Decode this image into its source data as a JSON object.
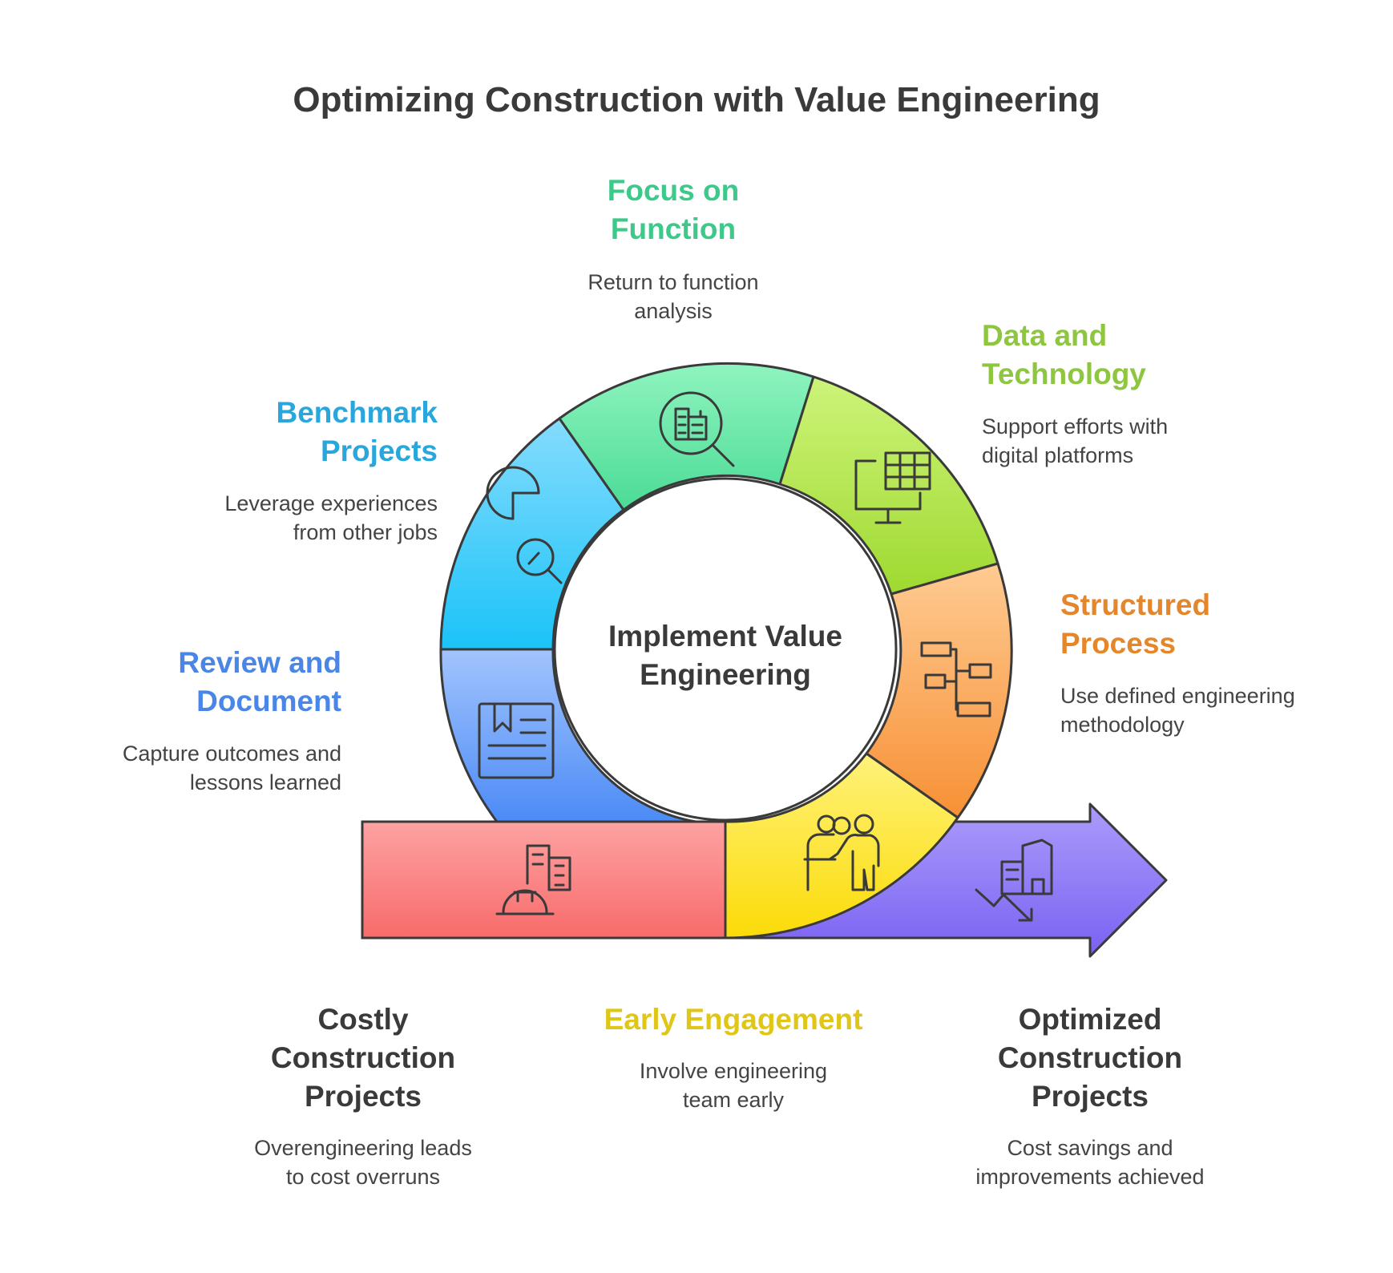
{
  "title": "Optimizing Construction with Value Engineering",
  "center": {
    "label": "Implement Value\nEngineering"
  },
  "colors": {
    "stroke": "#3a3a3a",
    "benchmark": "#29a7dd",
    "focus": "#3cc98a",
    "data": "#8ec63f",
    "structured": "#e5862a",
    "review": "#4a86e8",
    "early": "#e0c717",
    "neutral": "#3a3a3a"
  },
  "steps": {
    "focus": {
      "title": "Focus on\nFunction",
      "desc": "Return to function\nanalysis",
      "icon": "building-search-icon"
    },
    "data": {
      "title": "Data and\nTechnology",
      "desc": "Support efforts with\ndigital platforms",
      "icon": "monitor-spreadsheet-icon"
    },
    "benchmark": {
      "title": "Benchmark\nProjects",
      "desc": "Leverage experiences\nfrom other jobs",
      "icon": "pie-chart-search-icon"
    },
    "structured": {
      "title": "Structured\nProcess",
      "desc": "Use defined engineering\nmethodology",
      "icon": "flowchart-icon"
    },
    "review": {
      "title": "Review and\nDocument",
      "desc": "Capture outcomes and\nlessons learned",
      "icon": "document-icon"
    },
    "costly": {
      "title": "Costly\nConstruction\nProjects",
      "desc": "Overengineering leads\nto cost overruns",
      "icon": "hardhat-building-icon"
    },
    "early": {
      "title": "Early Engagement",
      "desc": "Involve engineering\nteam early",
      "icon": "presenter-icon"
    },
    "optimized": {
      "title": "Optimized\nConstruction\nProjects",
      "desc": "Cost savings and\nimprovements achieved",
      "icon": "building-trend-down-icon"
    }
  }
}
